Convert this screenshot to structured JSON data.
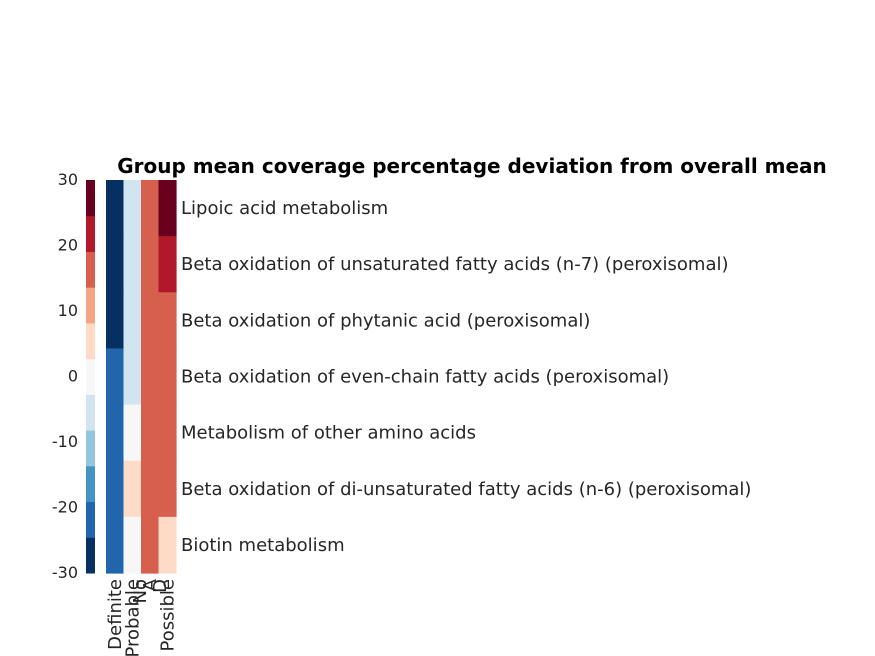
{
  "chart_data": {
    "type": "heatmap",
    "title": "Group mean coverage percentage deviation from overall mean",
    "columns": [
      "Definite",
      "Probable",
      "No A D",
      "Possible"
    ],
    "column_label_lines": [
      [
        "Definite"
      ],
      [
        "Probable"
      ],
      [
        "No",
        "A",
        "D"
      ],
      [
        "Possible"
      ]
    ],
    "rows": [
      "Lipoic acid metabolism",
      "Beta oxidation of unsaturated fatty acids (n-7) (peroxisomal)",
      "Beta oxidation of phytanic acid (peroxisomal)",
      "Beta oxidation of even-chain fatty acids (peroxisomal)",
      "Metabolism of other amino acids",
      "Beta oxidation of di-unsaturated fatty acids (n-6) (peroxisomal)",
      "Biotin metabolism"
    ],
    "values": [
      [
        -30,
        -5,
        15,
        30
      ],
      [
        -30,
        -5,
        15,
        23
      ],
      [
        -30,
        -5,
        18,
        18
      ],
      [
        -22,
        -5,
        15,
        18
      ],
      [
        -22,
        0,
        15,
        15
      ],
      [
        -22,
        5,
        15,
        15
      ],
      [
        -22,
        0,
        15,
        5
      ]
    ],
    "colorbar": {
      "range": [
        -30,
        30
      ],
      "ticks": [
        30,
        20,
        10,
        0,
        -10,
        -20,
        -30
      ],
      "tick_labels": [
        "30",
        "20",
        "10",
        "0",
        "-10",
        "-20",
        "-30"
      ],
      "levels": 11,
      "colormap": [
        "#053061",
        "#2166ac",
        "#4393c3",
        "#92c5de",
        "#d1e5f0",
        "#f7f7f7",
        "#fddbc7",
        "#f4a582",
        "#d6604d",
        "#b2182b",
        "#67001f"
      ]
    }
  }
}
